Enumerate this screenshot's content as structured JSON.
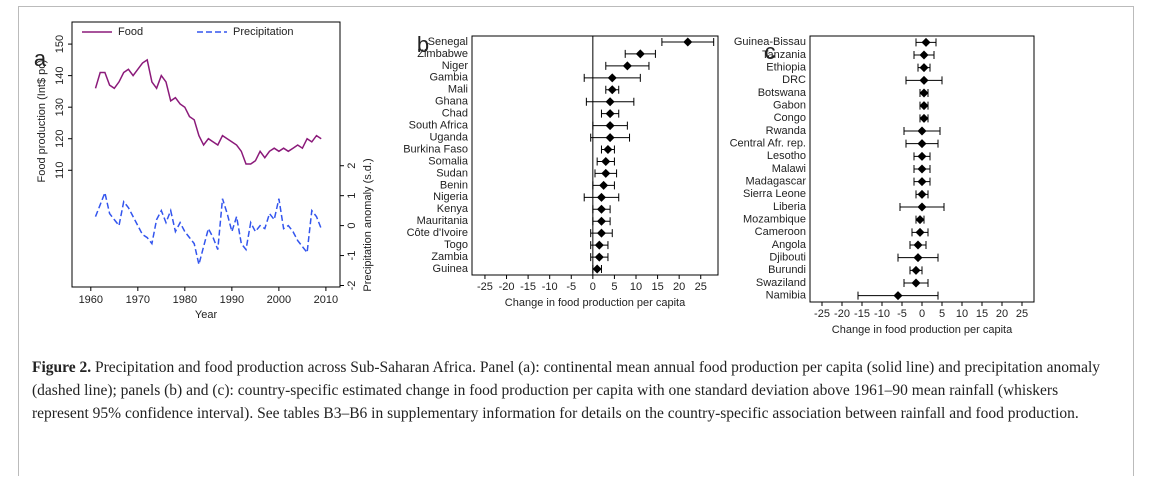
{
  "chart_data": [
    {
      "type": "line",
      "panel": "a",
      "x": [
        1961,
        1962,
        1963,
        1964,
        1965,
        1966,
        1967,
        1968,
        1969,
        1970,
        1971,
        1972,
        1973,
        1974,
        1975,
        1976,
        1977,
        1978,
        1979,
        1980,
        1981,
        1982,
        1983,
        1984,
        1985,
        1986,
        1987,
        1988,
        1989,
        1990,
        1991,
        1992,
        1993,
        1994,
        1995,
        1996,
        1997,
        1998,
        1999,
        2000,
        2001,
        2002,
        2003,
        2004,
        2005,
        2006,
        2007,
        2008,
        2009
      ],
      "series": [
        {
          "name": "Food",
          "color": "#8b1a7a",
          "linestyle": "solid",
          "values": [
            136,
            141,
            141,
            137,
            136,
            138,
            141,
            142,
            140,
            142,
            144,
            145,
            138,
            136,
            140,
            138,
            132,
            133,
            131,
            130,
            127,
            126,
            121,
            118,
            120,
            119,
            118,
            121,
            120,
            119,
            118,
            116,
            112,
            112,
            113,
            116,
            114,
            116,
            117,
            116,
            117,
            116,
            117,
            118,
            117,
            120,
            119,
            121,
            120
          ]
        },
        {
          "name": "Precipitation",
          "color": "#3355ee",
          "linestyle": "dashed",
          "axis": "y2",
          "values": [
            0.3,
            0.7,
            1.1,
            0.4,
            0.2,
            0.0,
            0.8,
            0.6,
            0.3,
            0.0,
            -0.3,
            -0.4,
            -0.6,
            0.2,
            0.5,
            0.1,
            0.5,
            -0.2,
            0.1,
            -0.2,
            -0.4,
            -0.6,
            -1.3,
            -0.7,
            -0.1,
            -0.4,
            -0.8,
            0.9,
            0.4,
            -0.2,
            0.3,
            -0.6,
            -0.8,
            0.1,
            -0.2,
            0.0,
            -0.1,
            0.4,
            0.2,
            0.9,
            -0.1,
            0.0,
            -0.2,
            -0.5,
            -0.7,
            -0.9,
            0.5,
            0.3,
            -0.1
          ]
        }
      ],
      "xlim": [
        1956,
        2013
      ],
      "xticks": [
        1960,
        1970,
        1980,
        1990,
        2000,
        2010
      ],
      "ylim": [
        73,
        157
      ],
      "yticks": [
        110,
        120,
        130,
        140,
        150
      ],
      "y2lim": [
        -2.05,
        6.8
      ],
      "y2ticks": [
        -2,
        -1,
        0,
        1,
        2
      ],
      "xlabel": "Year",
      "ylabel": "Food production (Int$ pc)",
      "y2label": "Precipitation anomaly (s.d.)"
    },
    {
      "type": "dot",
      "panel": "b",
      "categories": [
        "Senegal",
        "Zimbabwe",
        "Niger",
        "Gambia",
        "Mali",
        "Ghana",
        "Chad",
        "South Africa",
        "Uganda",
        "Burkina Faso",
        "Somalia",
        "Sudan",
        "Benin",
        "Nigeria",
        "Kenya",
        "Mauritania",
        "Côte d'Ivoire",
        "Togo",
        "Zambia",
        "Guinea"
      ],
      "values": [
        22,
        11,
        8,
        4.5,
        4.5,
        4,
        4,
        4,
        4,
        3.5,
        3,
        3,
        2.5,
        2,
        2,
        2,
        2,
        1.5,
        1.5,
        1
      ],
      "errors": [
        6,
        3.5,
        5,
        6.5,
        1.5,
        5.5,
        2,
        4,
        4.5,
        1.5,
        2,
        2.5,
        2.5,
        4,
        2,
        2,
        2.5,
        2,
        2,
        1
      ],
      "color": "#000000",
      "xlim": [
        -28,
        29
      ],
      "xticks": [
        -25,
        -20,
        -15,
        -10,
        -5,
        0,
        5,
        10,
        15,
        20,
        25
      ],
      "xlabel": "Change in food production per capita"
    },
    {
      "type": "dot",
      "panel": "c",
      "categories": [
        "Guinea-Bissau",
        "Tanzania",
        "Ethiopia",
        "DRC",
        "Botswana",
        "Gabon",
        "Congo",
        "Rwanda",
        "Central Afr. rep.",
        "Lesotho",
        "Malawi",
        "Madagascar",
        "Sierra Leone",
        "Liberia",
        "Mozambique",
        "Cameroon",
        "Angola",
        "Djibouti",
        "Burundi",
        "Swaziland",
        "Namibia"
      ],
      "values": [
        1,
        0.5,
        0.5,
        0.5,
        0.5,
        0.5,
        0.5,
        0,
        0,
        0,
        0,
        0,
        0,
        0,
        -0.5,
        -0.5,
        -1,
        -1,
        -1.5,
        -1.5,
        -6
      ],
      "errors": [
        2.5,
        2.5,
        1.5,
        4.5,
        1,
        1,
        1,
        4.5,
        4,
        2,
        2,
        2,
        1.5,
        5.5,
        1,
        2,
        2,
        5,
        1.5,
        3,
        10
      ],
      "color": "#000000",
      "xlim": [
        -28,
        28
      ],
      "xticks": [
        -25,
        -20,
        -15,
        -10,
        -5,
        0,
        5,
        10,
        15,
        20,
        25
      ],
      "xlabel": "Change in food production per capita"
    }
  ],
  "caption": {
    "label": "Figure 2.",
    "text": "Precipitation and food production across Sub-Saharan Africa. Panel (a): continental mean annual food production per capita (solid line) and precipitation anomaly (dashed line); panels (b) and (c): country-specific estimated change in food production per capita with one standard deviation above 1961–90 mean rainfall (whiskers represent 95% confidence interval). See tables B3–B6 in supplementary information for details on the country-specific association between rainfall and food production."
  }
}
